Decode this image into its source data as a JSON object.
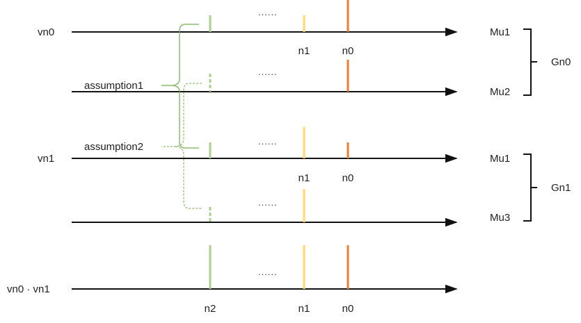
{
  "colors": {
    "axis": "#111111",
    "green": "#a9d08e",
    "green_dark": "#70ad47",
    "yellow": "#ffd966",
    "orange": "#ed7d31",
    "text": "#222222"
  },
  "rows": [
    {
      "label": "vn0",
      "right_label": "Mu1",
      "dots": "......",
      "markers": [
        "n1",
        "n0"
      ]
    },
    {
      "label": "",
      "right_label": "Mu2",
      "dots": "......",
      "markers": []
    },
    {
      "label": "vn1",
      "right_label": "Mu1",
      "dots": "......",
      "markers": [
        "n1",
        "n0"
      ]
    },
    {
      "label": "",
      "right_label": "Mu3",
      "dots": "......",
      "markers": []
    },
    {
      "label": "vn0 · vn1",
      "right_label": "",
      "dots": "......",
      "markers": [
        "n2",
        "n1",
        "n0"
      ]
    }
  ],
  "groups": [
    {
      "label": "Gn0"
    },
    {
      "label": "Gn1"
    }
  ],
  "assumptions": [
    "assumption1",
    "assumption2"
  ]
}
